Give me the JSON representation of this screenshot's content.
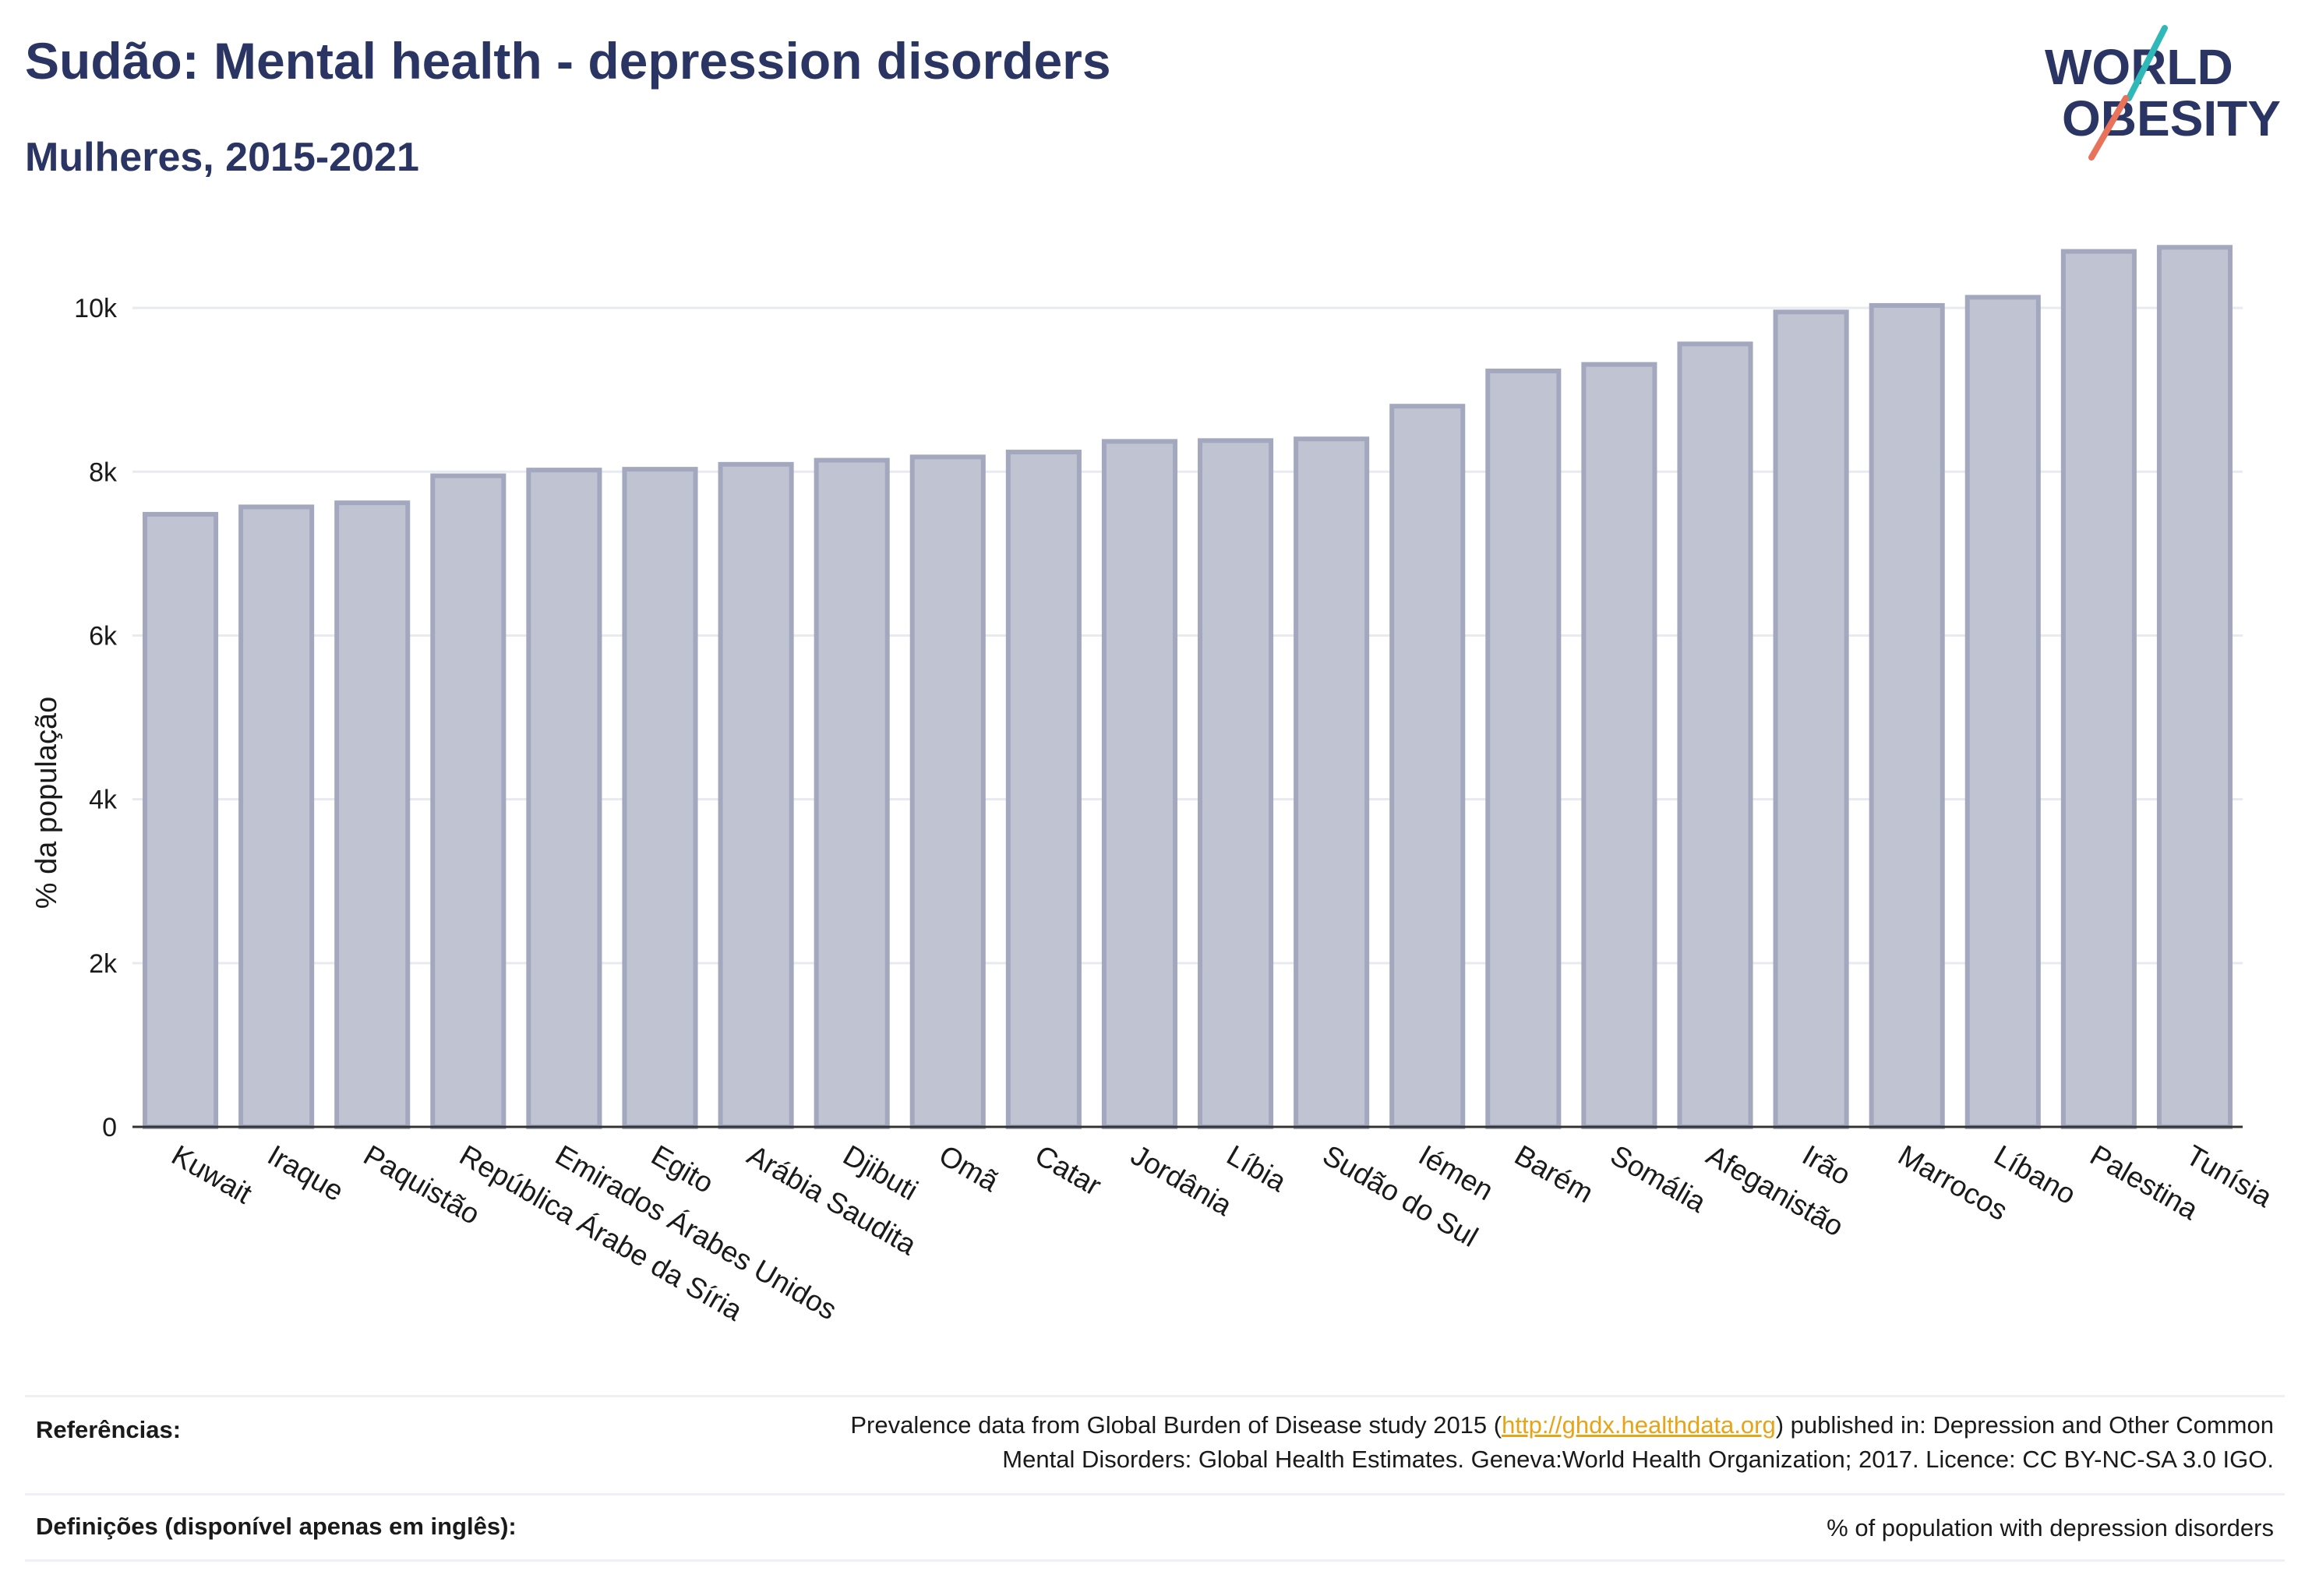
{
  "header": {
    "title": "Sudão: Mental health - depression disorders",
    "subtitle": "Mulheres, 2015-2021"
  },
  "logo": {
    "line1": "WORLD",
    "line2": "OBESITY",
    "accent_colors": [
      "#2fb8b8",
      "#e8735a"
    ]
  },
  "chart_data": {
    "type": "bar",
    "ylabel": "% da população",
    "ylim": [
      0,
      11000
    ],
    "yticks": [
      0,
      2000,
      4000,
      6000,
      8000,
      10000
    ],
    "ytick_labels": [
      "0",
      "2k",
      "4k",
      "6k",
      "8k",
      "10k"
    ],
    "grid": true,
    "bar_color": "#c0c3d2",
    "bar_edge_color": "#a3a8bf",
    "categories": [
      "Kuwait",
      "Iraque",
      "Paquistão",
      "República Árabe da Síria",
      "Emirados Árabes Unidos",
      "Egito",
      "Arábia Saudita",
      "Djibuti",
      "Omã",
      "Catar",
      "Jordânia",
      "Líbia",
      "Sudão do Sul",
      "Iémen",
      "Barém",
      "Somália",
      "Afeganistão",
      "Irão",
      "Marrocos",
      "Líbano",
      "Palestina",
      "Tunísia"
    ],
    "values": [
      7480,
      7570,
      7620,
      7950,
      8020,
      8030,
      8090,
      8140,
      8180,
      8240,
      8370,
      8380,
      8400,
      8800,
      9230,
      9310,
      9560,
      9950,
      10030,
      10130,
      10690,
      10740
    ]
  },
  "footer": {
    "references_label": "Referências:",
    "references_text_before": "Prevalence data from Global Burden of Disease study 2015 (",
    "references_link": "http://ghdx.healthdata.org",
    "references_text_after": ") published in: Depression and Other Common",
    "references_line2": "Mental Disorders: Global Health Estimates. Geneva:World Health Organization; 2017. Licence: CC BY-NC-SA 3.0 IGO.",
    "definitions_label": "Definições (disponível apenas em inglês):",
    "definitions_text": "% of population with depression disorders"
  }
}
